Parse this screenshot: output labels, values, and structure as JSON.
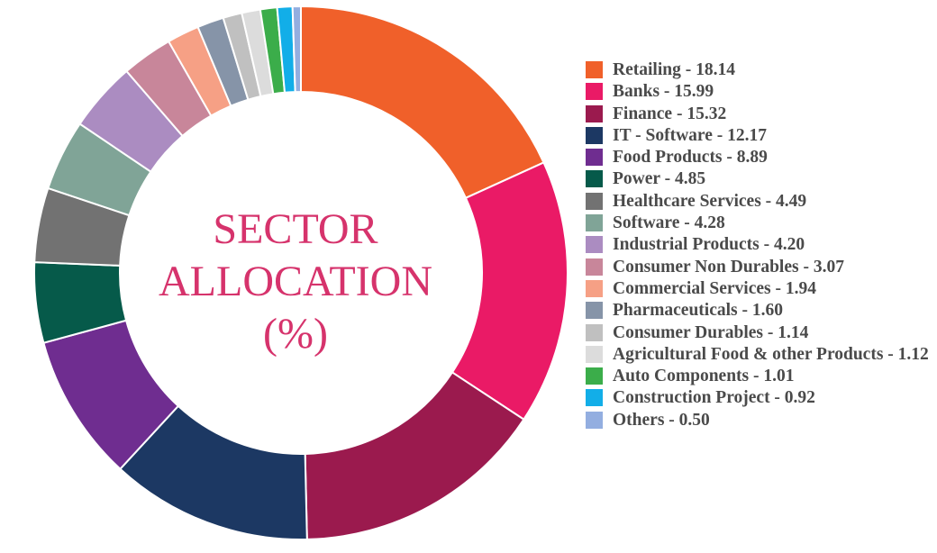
{
  "chart_data": {
    "type": "pie",
    "variant": "donut",
    "center_title_lines": [
      "SECTOR",
      "ALLOCATION",
      "(%)"
    ],
    "slices": [
      {
        "label": "Retailing",
        "value": 18.14,
        "display": "18.14",
        "color": "#f0602a"
      },
      {
        "label": "Banks",
        "value": 15.99,
        "display": "15.99",
        "color": "#ea1a66"
      },
      {
        "label": "Finance",
        "value": 15.32,
        "display": "15.32",
        "color": "#9b1a4e"
      },
      {
        "label": "IT - Software",
        "value": 12.17,
        "display": "12.17",
        "color": "#1c3863"
      },
      {
        "label": "Food Products",
        "value": 8.89,
        "display": "8.89",
        "color": "#6f2d90"
      },
      {
        "label": "Power",
        "value": 4.85,
        "display": "4.85",
        "color": "#065a4a"
      },
      {
        "label": "Healthcare Services",
        "value": 4.49,
        "display": "4.49",
        "color": "#727272"
      },
      {
        "label": "Software",
        "value": 4.28,
        "display": "4.28",
        "color": "#80a497"
      },
      {
        "label": "Industrial Products",
        "value": 4.2,
        "display": "4.20",
        "color": "#ab8cc1"
      },
      {
        "label": "Consumer Non Durables",
        "value": 3.07,
        "display": "3.07",
        "color": "#c8869a"
      },
      {
        "label": "Commercial Services",
        "value": 1.94,
        "display": "1.94",
        "color": "#f6a085"
      },
      {
        "label": "Pharmaceuticals",
        "value": 1.6,
        "display": "1.60",
        "color": "#8694a8"
      },
      {
        "label": "Consumer Durables",
        "value": 1.14,
        "display": "1.14",
        "color": "#c0c0c0"
      },
      {
        "label": "Agricultural Food & other Products",
        "value": 1.12,
        "display": "1.12",
        "color": "#dcdcdc"
      },
      {
        "label": "Auto Components",
        "value": 1.01,
        "display": "1.01",
        "color": "#3bad4a"
      },
      {
        "label": "Construction Project",
        "value": 0.92,
        "display": "0.92",
        "color": "#12aee8"
      },
      {
        "label": "Others",
        "value": 0.5,
        "display": "0.50",
        "color": "#93aee0"
      }
    ],
    "legend_position": "right",
    "start_angle": "top, clockwise"
  }
}
